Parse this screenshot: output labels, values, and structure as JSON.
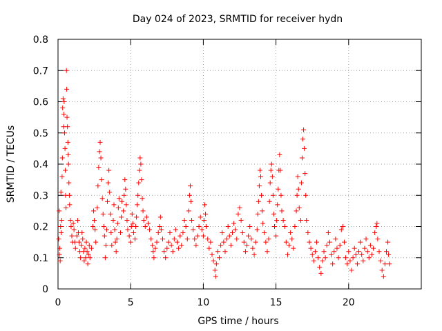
{
  "chart_data": {
    "type": "scatter",
    "title": "Day 024 of 2023, SRMTID for receiver hydn",
    "xlabel": "GPS time / hours",
    "ylabel": "SRMTID / TECUs",
    "xlim": [
      0,
      25
    ],
    "ylim": [
      0,
      0.8
    ],
    "x_ticks": [
      0,
      5,
      10,
      15,
      20
    ],
    "x_tick_labels": [
      "0",
      "5",
      "10",
      "15",
      "20"
    ],
    "y_ticks": [
      0,
      0.1,
      0.2,
      0.3,
      0.4,
      0.5,
      0.6,
      0.7,
      0.8
    ],
    "y_tick_labels": [
      "0",
      "0.1",
      "0.2",
      "0.3",
      "0.4",
      "0.5",
      "0.6",
      "0.7",
      "0.8"
    ],
    "grid": true,
    "marker": "+",
    "series_color": "#ff0000",
    "series": [
      {
        "name": "SRMTID",
        "points": [
          [
            0.05,
            0.16
          ],
          [
            0.08,
            0.25
          ],
          [
            0.1,
            0.11
          ],
          [
            0.12,
            0.13
          ],
          [
            0.15,
            0.09
          ],
          [
            0.18,
            0.2
          ],
          [
            0.2,
            0.31
          ],
          [
            0.22,
            0.18
          ],
          [
            0.25,
            0.22
          ],
          [
            0.28,
            0.36
          ],
          [
            0.3,
            0.42
          ],
          [
            0.32,
            0.58
          ],
          [
            0.35,
            0.61
          ],
          [
            0.38,
            0.52
          ],
          [
            0.4,
            0.56
          ],
          [
            0.42,
            0.6
          ],
          [
            0.45,
            0.5
          ],
          [
            0.48,
            0.45
          ],
          [
            0.5,
            0.38
          ],
          [
            0.52,
            0.3
          ],
          [
            0.55,
            0.26
          ],
          [
            0.58,
            0.7
          ],
          [
            0.6,
            0.64
          ],
          [
            0.62,
            0.55
          ],
          [
            0.65,
            0.52
          ],
          [
            0.68,
            0.47
          ],
          [
            0.7,
            0.43
          ],
          [
            0.72,
            0.4
          ],
          [
            0.75,
            0.34
          ],
          [
            0.78,
            0.3
          ],
          [
            0.8,
            0.27
          ],
          [
            0.85,
            0.22
          ],
          [
            0.9,
            0.2
          ],
          [
            0.95,
            0.17
          ],
          [
            1.0,
            0.15
          ],
          [
            1.05,
            0.21
          ],
          [
            1.1,
            0.19
          ],
          [
            1.15,
            0.15
          ],
          [
            1.2,
            0.13
          ],
          [
            1.3,
            0.17
          ],
          [
            1.35,
            0.22
          ],
          [
            1.4,
            0.18
          ],
          [
            1.45,
            0.15
          ],
          [
            1.5,
            0.12
          ],
          [
            1.55,
            0.1
          ],
          [
            1.6,
            0.14
          ],
          [
            1.65,
            0.18
          ],
          [
            1.7,
            0.16
          ],
          [
            1.75,
            0.12
          ],
          [
            1.8,
            0.09
          ],
          [
            1.85,
            0.13
          ],
          [
            1.9,
            0.1
          ],
          [
            1.95,
            0.15
          ],
          [
            2.0,
            0.12
          ],
          [
            2.05,
            0.08
          ],
          [
            2.1,
            0.11
          ],
          [
            2.15,
            0.14
          ],
          [
            2.2,
            0.1
          ],
          [
            2.3,
            0.13
          ],
          [
            2.4,
            0.2
          ],
          [
            2.45,
            0.25
          ],
          [
            2.5,
            0.22
          ],
          [
            2.55,
            0.19
          ],
          [
            2.6,
            0.15
          ],
          [
            2.7,
            0.26
          ],
          [
            2.75,
            0.33
          ],
          [
            2.8,
            0.39
          ],
          [
            2.85,
            0.44
          ],
          [
            2.9,
            0.47
          ],
          [
            2.95,
            0.42
          ],
          [
            3.0,
            0.35
          ],
          [
            3.05,
            0.29
          ],
          [
            3.1,
            0.24
          ],
          [
            3.15,
            0.2
          ],
          [
            3.2,
            0.17
          ],
          [
            3.25,
            0.1
          ],
          [
            3.3,
            0.14
          ],
          [
            3.35,
            0.19
          ],
          [
            3.4,
            0.28
          ],
          [
            3.45,
            0.34
          ],
          [
            3.5,
            0.38
          ],
          [
            3.55,
            0.31
          ],
          [
            3.6,
            0.24
          ],
          [
            3.65,
            0.18
          ],
          [
            3.7,
            0.14
          ],
          [
            3.8,
            0.22
          ],
          [
            3.85,
            0.27
          ],
          [
            3.9,
            0.19
          ],
          [
            3.95,
            0.15
          ],
          [
            4.0,
            0.12
          ],
          [
            4.05,
            0.16
          ],
          [
            4.1,
            0.21
          ],
          [
            4.15,
            0.26
          ],
          [
            4.2,
            0.29
          ],
          [
            4.3,
            0.18
          ],
          [
            4.35,
            0.23
          ],
          [
            4.4,
            0.28
          ],
          [
            4.5,
            0.25
          ],
          [
            4.55,
            0.3
          ],
          [
            4.6,
            0.35
          ],
          [
            4.65,
            0.32
          ],
          [
            4.7,
            0.27
          ],
          [
            4.75,
            0.22
          ],
          [
            4.8,
            0.19
          ],
          [
            4.9,
            0.17
          ],
          [
            5.0,
            0.15
          ],
          [
            5.05,
            0.2
          ],
          [
            5.1,
            0.24
          ],
          [
            5.15,
            0.21
          ],
          [
            5.2,
            0.18
          ],
          [
            5.3,
            0.16
          ],
          [
            5.35,
            0.2
          ],
          [
            5.4,
            0.23
          ],
          [
            5.45,
            0.27
          ],
          [
            5.5,
            0.3
          ],
          [
            5.55,
            0.34
          ],
          [
            5.6,
            0.38
          ],
          [
            5.65,
            0.42
          ],
          [
            5.7,
            0.4
          ],
          [
            5.75,
            0.35
          ],
          [
            5.8,
            0.29
          ],
          [
            5.85,
            0.25
          ],
          [
            5.9,
            0.22
          ],
          [
            6.0,
            0.2
          ],
          [
            6.1,
            0.23
          ],
          [
            6.2,
            0.21
          ],
          [
            6.3,
            0.19
          ],
          [
            6.4,
            0.16
          ],
          [
            6.5,
            0.14
          ],
          [
            6.55,
            0.12
          ],
          [
            6.6,
            0.1
          ],
          [
            6.7,
            0.13
          ],
          [
            6.8,
            0.15
          ],
          [
            6.9,
            0.18
          ],
          [
            7.0,
            0.2
          ],
          [
            7.05,
            0.23
          ],
          [
            7.1,
            0.19
          ],
          [
            7.2,
            0.16
          ],
          [
            7.3,
            0.12
          ],
          [
            7.4,
            0.1
          ],
          [
            7.5,
            0.13
          ],
          [
            7.6,
            0.15
          ],
          [
            7.7,
            0.18
          ],
          [
            7.8,
            0.14
          ],
          [
            7.9,
            0.12
          ],
          [
            8.0,
            0.16
          ],
          [
            8.1,
            0.19
          ],
          [
            8.2,
            0.15
          ],
          [
            8.3,
            0.13
          ],
          [
            8.4,
            0.17
          ],
          [
            8.5,
            0.14
          ],
          [
            8.6,
            0.18
          ],
          [
            8.7,
            0.22
          ],
          [
            8.8,
            0.2
          ],
          [
            8.9,
            0.16
          ],
          [
            9.0,
            0.25
          ],
          [
            9.05,
            0.3
          ],
          [
            9.1,
            0.33
          ],
          [
            9.15,
            0.28
          ],
          [
            9.2,
            0.22
          ],
          [
            9.3,
            0.19
          ],
          [
            9.4,
            0.16
          ],
          [
            9.5,
            0.14
          ],
          [
            9.6,
            0.17
          ],
          [
            9.7,
            0.2
          ],
          [
            9.8,
            0.23
          ],
          [
            9.9,
            0.19
          ],
          [
            10.0,
            0.17
          ],
          [
            10.05,
            0.22
          ],
          [
            10.1,
            0.27
          ],
          [
            10.15,
            0.24
          ],
          [
            10.2,
            0.2
          ],
          [
            10.3,
            0.16
          ],
          [
            10.4,
            0.13
          ],
          [
            10.5,
            0.15
          ],
          [
            10.6,
            0.11
          ],
          [
            10.7,
            0.09
          ],
          [
            10.8,
            0.06
          ],
          [
            10.85,
            0.04
          ],
          [
            10.9,
            0.08
          ],
          [
            11.0,
            0.12
          ],
          [
            11.1,
            0.1
          ],
          [
            11.2,
            0.14
          ],
          [
            11.3,
            0.18
          ],
          [
            11.4,
            0.15
          ],
          [
            11.5,
            0.12
          ],
          [
            11.6,
            0.16
          ],
          [
            11.7,
            0.2
          ],
          [
            11.8,
            0.17
          ],
          [
            11.9,
            0.14
          ],
          [
            12.0,
            0.18
          ],
          [
            12.1,
            0.21
          ],
          [
            12.2,
            0.19
          ],
          [
            12.3,
            0.16
          ],
          [
            12.4,
            0.24
          ],
          [
            12.5,
            0.26
          ],
          [
            12.6,
            0.22
          ],
          [
            12.7,
            0.18
          ],
          [
            12.8,
            0.15
          ],
          [
            12.9,
            0.12
          ],
          [
            13.0,
            0.14
          ],
          [
            13.1,
            0.17
          ],
          [
            13.2,
            0.2
          ],
          [
            13.3,
            0.16
          ],
          [
            13.4,
            0.13
          ],
          [
            13.5,
            0.11
          ],
          [
            13.6,
            0.15
          ],
          [
            13.7,
            0.19
          ],
          [
            13.75,
            0.24
          ],
          [
            13.8,
            0.28
          ],
          [
            13.85,
            0.33
          ],
          [
            13.9,
            0.38
          ],
          [
            13.95,
            0.36
          ],
          [
            14.0,
            0.3
          ],
          [
            14.05,
            0.25
          ],
          [
            14.1,
            0.21
          ],
          [
            14.2,
            0.18
          ],
          [
            14.3,
            0.15
          ],
          [
            14.4,
            0.12
          ],
          [
            14.5,
            0.16
          ],
          [
            14.55,
            0.28
          ],
          [
            14.6,
            0.34
          ],
          [
            14.65,
            0.38
          ],
          [
            14.7,
            0.4
          ],
          [
            14.75,
            0.36
          ],
          [
            14.8,
            0.3
          ],
          [
            14.85,
            0.24
          ],
          [
            14.9,
            0.2
          ],
          [
            15.0,
            0.17
          ],
          [
            15.05,
            0.22
          ],
          [
            15.1,
            0.27
          ],
          [
            15.15,
            0.32
          ],
          [
            15.2,
            0.38
          ],
          [
            15.25,
            0.43
          ],
          [
            15.3,
            0.38
          ],
          [
            15.35,
            0.3
          ],
          [
            15.4,
            0.25
          ],
          [
            15.5,
            0.22
          ],
          [
            15.6,
            0.2
          ],
          [
            15.7,
            0.15
          ],
          [
            15.8,
            0.11
          ],
          [
            15.9,
            0.14
          ],
          [
            16.0,
            0.18
          ],
          [
            16.1,
            0.16
          ],
          [
            16.2,
            0.13
          ],
          [
            16.3,
            0.2
          ],
          [
            16.4,
            0.25
          ],
          [
            16.45,
            0.3
          ],
          [
            16.5,
            0.36
          ],
          [
            16.55,
            0.32
          ],
          [
            16.6,
            0.26
          ],
          [
            16.7,
            0.22
          ],
          [
            16.75,
            0.34
          ],
          [
            16.8,
            0.42
          ],
          [
            16.85,
            0.48
          ],
          [
            16.9,
            0.51
          ],
          [
            16.95,
            0.45
          ],
          [
            17.0,
            0.37
          ],
          [
            17.05,
            0.3
          ],
          [
            17.1,
            0.22
          ],
          [
            17.2,
            0.18
          ],
          [
            17.3,
            0.15
          ],
          [
            17.4,
            0.13
          ],
          [
            17.5,
            0.11
          ],
          [
            17.6,
            0.09
          ],
          [
            17.7,
            0.12
          ],
          [
            17.8,
            0.15
          ],
          [
            17.9,
            0.1
          ],
          [
            18.0,
            0.07
          ],
          [
            18.1,
            0.05
          ],
          [
            18.2,
            0.09
          ],
          [
            18.3,
            0.12
          ],
          [
            18.4,
            0.1
          ],
          [
            18.5,
            0.14
          ],
          [
            18.6,
            0.18
          ],
          [
            18.7,
            0.15
          ],
          [
            18.8,
            0.11
          ],
          [
            18.9,
            0.08
          ],
          [
            19.0,
            0.12
          ],
          [
            19.1,
            0.16
          ],
          [
            19.2,
            0.13
          ],
          [
            19.3,
            0.1
          ],
          [
            19.4,
            0.14
          ],
          [
            19.5,
            0.19
          ],
          [
            19.6,
            0.2
          ],
          [
            19.7,
            0.15
          ],
          [
            19.8,
            0.1
          ],
          [
            19.9,
            0.08
          ],
          [
            20.0,
            0.12
          ],
          [
            20.1,
            0.09
          ],
          [
            20.2,
            0.06
          ],
          [
            20.3,
            0.1
          ],
          [
            20.4,
            0.13
          ],
          [
            20.5,
            0.11
          ],
          [
            20.6,
            0.08
          ],
          [
            20.7,
            0.12
          ],
          [
            20.8,
            0.15
          ],
          [
            20.9,
            0.11
          ],
          [
            21.0,
            0.09
          ],
          [
            21.1,
            0.13
          ],
          [
            21.2,
            0.16
          ],
          [
            21.3,
            0.12
          ],
          [
            21.4,
            0.1
          ],
          [
            21.5,
            0.14
          ],
          [
            21.6,
            0.11
          ],
          [
            21.7,
            0.13
          ],
          [
            21.8,
            0.18
          ],
          [
            21.9,
            0.2
          ],
          [
            21.95,
            0.21
          ],
          [
            22.0,
            0.16
          ],
          [
            22.1,
            0.12
          ],
          [
            22.2,
            0.09
          ],
          [
            22.3,
            0.06
          ],
          [
            22.4,
            0.04
          ],
          [
            22.5,
            0.08
          ],
          [
            22.6,
            0.12
          ],
          [
            22.7,
            0.15
          ],
          [
            22.75,
            0.11
          ],
          [
            22.8,
            0.08
          ]
        ]
      }
    ]
  }
}
